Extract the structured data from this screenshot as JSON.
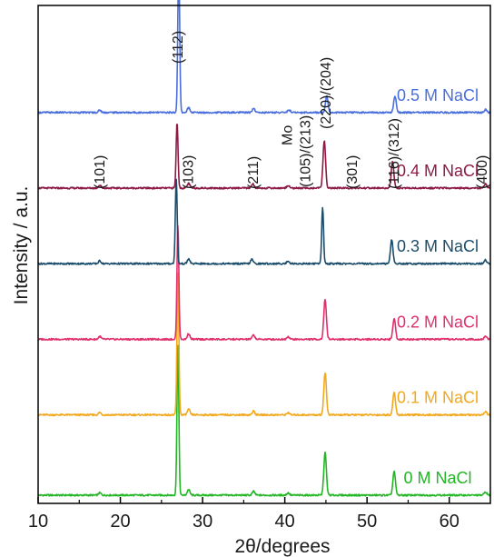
{
  "chart_data": {
    "type": "line",
    "title": "",
    "xlabel": "2θ/degrees",
    "ylabel": "Intensity / a.u.",
    "xlim": [
      10,
      65
    ],
    "x_ticks": [
      10,
      20,
      30,
      40,
      50,
      60
    ],
    "y_ticks_shown": false,
    "grid": false,
    "legend": "inline-labels-right",
    "peak_labels": [
      {
        "text": "(101)",
        "x": 17.5
      },
      {
        "text": "(112)",
        "x": 27.0
      },
      {
        "text": "(103)",
        "x": 28.3
      },
      {
        "text": "(211)",
        "x": 36.2
      },
      {
        "text": "Mo",
        "x": 40.3
      },
      {
        "text": "(105)/(213)",
        "x": 42.5
      },
      {
        "text": "(220)/(204)",
        "x": 45.0
      },
      {
        "text": "(301)",
        "x": 48.2
      },
      {
        "text": "(116)/(312)",
        "x": 53.3
      },
      {
        "text": "(400)",
        "x": 64.0
      }
    ],
    "series": [
      {
        "name": "0 M NaCl",
        "color": "#22b524",
        "offset": 0,
        "peaks": [
          {
            "x": 17.5,
            "height": 0.5
          },
          {
            "x": 27.0,
            "height": 32
          },
          {
            "x": 28.3,
            "height": 1.2
          },
          {
            "x": 36.2,
            "height": 0.8
          },
          {
            "x": 40.4,
            "height": 0.5
          },
          {
            "x": 44.9,
            "height": 9
          },
          {
            "x": 53.3,
            "height": 5
          },
          {
            "x": 64.4,
            "height": 0.7
          }
        ]
      },
      {
        "name": "0.1 M NaCl",
        "color": "#f2a81d",
        "offset": 17,
        "peaks": [
          {
            "x": 17.5,
            "height": 0.5
          },
          {
            "x": 27.0,
            "height": 30
          },
          {
            "x": 28.3,
            "height": 1.2
          },
          {
            "x": 36.2,
            "height": 0.8
          },
          {
            "x": 40.4,
            "height": 0.5
          },
          {
            "x": 44.9,
            "height": 9
          },
          {
            "x": 53.3,
            "height": 4.8
          },
          {
            "x": 64.4,
            "height": 0.7
          }
        ]
      },
      {
        "name": "0.2 M NaCl",
        "color": "#e0306e",
        "offset": 33,
        "peaks": [
          {
            "x": 17.5,
            "height": 0.6
          },
          {
            "x": 27.0,
            "height": 24
          },
          {
            "x": 28.3,
            "height": 1.2
          },
          {
            "x": 36.2,
            "height": 0.9
          },
          {
            "x": 40.4,
            "height": 0.6
          },
          {
            "x": 44.9,
            "height": 8.5
          },
          {
            "x": 53.3,
            "height": 4.5
          },
          {
            "x": 64.4,
            "height": 0.7
          }
        ]
      },
      {
        "name": "0.3 M NaCl",
        "color": "#1b4d6b",
        "offset": 49,
        "peaks": [
          {
            "x": 17.5,
            "height": 0.6
          },
          {
            "x": 26.8,
            "height": 18
          },
          {
            "x": 28.3,
            "height": 1.0
          },
          {
            "x": 36.0,
            "height": 0.9
          },
          {
            "x": 40.4,
            "height": 0.6
          },
          {
            "x": 44.6,
            "height": 12
          },
          {
            "x": 53.0,
            "height": 5
          },
          {
            "x": 64.4,
            "height": 0.8
          }
        ]
      },
      {
        "name": "0.4 M NaCl",
        "color": "#8c1a45",
        "offset": 65,
        "peaks": [
          {
            "x": 17.5,
            "height": 0.6
          },
          {
            "x": 26.9,
            "height": 14
          },
          {
            "x": 28.3,
            "height": 1.0
          },
          {
            "x": 36.1,
            "height": 0.9
          },
          {
            "x": 40.4,
            "height": 0.6
          },
          {
            "x": 44.8,
            "height": 10
          },
          {
            "x": 53.1,
            "height": 5.5
          },
          {
            "x": 64.4,
            "height": 0.8
          }
        ]
      },
      {
        "name": "0.5 M NaCl",
        "color": "#4a6fdc",
        "offset": 81,
        "peaks": [
          {
            "x": 17.5,
            "height": 0.5
          },
          {
            "x": 27.1,
            "height": 32
          },
          {
            "x": 28.3,
            "height": 1.0
          },
          {
            "x": 36.2,
            "height": 0.9
          },
          {
            "x": 40.5,
            "height": 0.6
          },
          {
            "x": 45.1,
            "height": 3.5
          },
          {
            "x": 53.4,
            "height": 3.5
          },
          {
            "x": 64.4,
            "height": 0.6
          }
        ]
      }
    ]
  }
}
